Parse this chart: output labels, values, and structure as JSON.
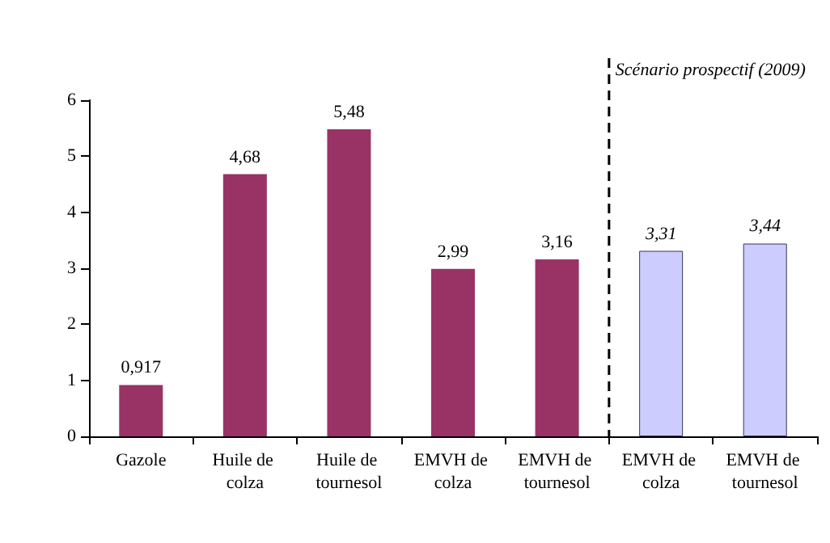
{
  "chart_data": {
    "type": "bar",
    "categories": [
      "Gazole",
      "Huile de colza",
      "Huile de tournesol",
      "EMVH de colza",
      "EMVH de tournesol",
      "EMVH de colza",
      "EMVH de tournesol"
    ],
    "values": [
      0.917,
      4.68,
      5.48,
      2.99,
      3.16,
      3.31,
      3.44
    ],
    "value_labels": [
      "0,917",
      "4,68",
      "5,48",
      "2,99",
      "3,16",
      "3,31",
      "3,44"
    ],
    "colors": [
      "#993366",
      "#993366",
      "#993366",
      "#993366",
      "#993366",
      "#ccccff",
      "#ccccff"
    ],
    "ylim": [
      0,
      6
    ],
    "yticks": [
      0,
      1,
      2,
      3,
      4,
      5,
      6
    ],
    "grid": false,
    "annotations": [
      "Scénario prospectif (2009)"
    ]
  }
}
